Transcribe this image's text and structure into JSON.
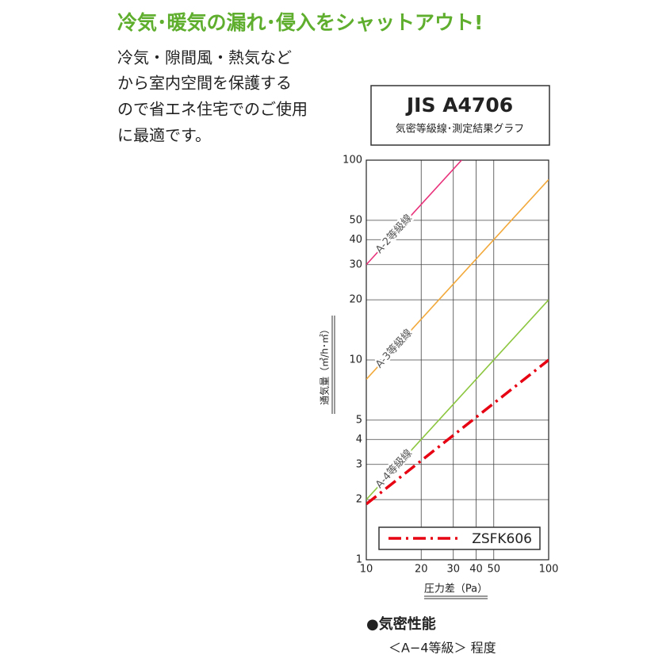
{
  "headline": "冷気･暖気の漏れ･侵入をシャットアウト!",
  "description": [
    "冷気・隙間風・熱気など",
    "から室内空間を保護する",
    "ので省エネ住宅でのご使用",
    "に最適です。"
  ],
  "footer": {
    "title": "●気密性能",
    "text": "＜A−4等級＞ 程度"
  },
  "chart_data": {
    "type": "line",
    "title": "JIS A4706",
    "subtitle": "気密等級線･測定結果グラフ",
    "xlabel": "圧力差（Pa）",
    "ylabel": "通気量（㎥/h･㎡）",
    "xscale": "log",
    "yscale": "log",
    "grid": true,
    "xlim": [
      10,
      100
    ],
    "ylim": [
      1,
      100
    ],
    "xticks": [
      10,
      20,
      30,
      40,
      50,
      100
    ],
    "yticks": [
      1,
      2,
      3,
      4,
      5,
      10,
      20,
      30,
      40,
      50,
      100
    ],
    "legend": "lower right",
    "series": [
      {
        "name": "A-2等級線",
        "color": "#e8317a",
        "x": [
          10,
          33.3
        ],
        "values": [
          30,
          100
        ],
        "in_legend": false
      },
      {
        "name": "A-3等級線",
        "color": "#f2a93b",
        "x": [
          10,
          100
        ],
        "values": [
          8,
          80
        ],
        "in_legend": false
      },
      {
        "name": "A-4等級線",
        "color": "#8cc63f",
        "x": [
          10,
          100
        ],
        "values": [
          2,
          20
        ],
        "in_legend": false
      },
      {
        "name": "ZSFK606",
        "color": "#e60012",
        "x": [
          10,
          100
        ],
        "values": [
          1.9,
          10
        ],
        "in_legend": true,
        "dash": "dash-dot"
      }
    ]
  }
}
